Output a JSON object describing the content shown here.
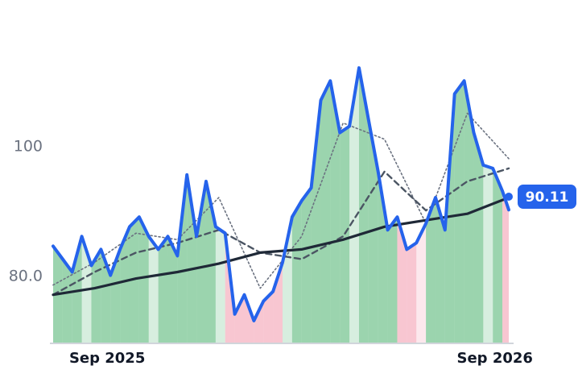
{
  "chart_data": {
    "type": "line",
    "x_start": "2025-08-19",
    "x_end": "2026-10-22",
    "xticks": [
      {
        "date": "2025-09-01",
        "label": "Sep 2025"
      },
      {
        "date": "2026-09-01",
        "label": "Sep 2026"
      }
    ],
    "yticks": [
      {
        "value": 80,
        "label": "80.0"
      },
      {
        "value": 100,
        "label": "100"
      }
    ],
    "ylim": [
      69.5,
      117.5
    ],
    "grid": false,
    "last_value_label": "90.11",
    "colors": {
      "price": "#2563eb",
      "ma_long": "#1f2937",
      "ma_mid": "#4b5563",
      "ma_short": "#6b7280",
      "up_fill": "#22a04b",
      "down_fill": "#f08099",
      "badge": "#2563eb",
      "axis": "#d1d5db"
    },
    "series": [
      {
        "key": "price",
        "x": [
          "2025-08-19",
          "2025-08-28",
          "2025-09-06",
          "2025-09-15",
          "2025-09-24",
          "2025-10-03",
          "2025-10-12",
          "2025-10-21",
          "2025-10-30",
          "2025-11-08",
          "2025-11-17",
          "2025-11-26",
          "2025-12-05",
          "2025-12-14",
          "2025-12-23",
          "2026-01-01",
          "2026-01-10",
          "2026-01-19",
          "2026-01-28",
          "2026-02-06",
          "2026-02-15",
          "2026-02-24",
          "2026-03-05",
          "2026-03-14",
          "2026-03-23",
          "2026-04-01",
          "2026-04-10",
          "2026-04-19",
          "2026-04-28",
          "2026-05-07",
          "2026-05-16",
          "2026-05-25",
          "2026-06-03",
          "2026-06-12",
          "2026-06-21",
          "2026-06-30",
          "2026-07-09",
          "2026-07-18",
          "2026-07-27",
          "2026-08-05",
          "2026-08-14",
          "2026-08-23",
          "2026-09-01",
          "2026-09-10",
          "2026-09-19",
          "2026-09-28",
          "2026-10-07",
          "2026-10-16",
          "2026-10-22"
        ],
        "y": [
          84.5,
          82.5,
          80.5,
          86.0,
          81.5,
          84.0,
          80.0,
          84.0,
          87.5,
          89.0,
          86.0,
          84.0,
          86.0,
          83.0,
          95.5,
          86.0,
          94.5,
          87.5,
          86.5,
          74.0,
          77.0,
          73.0,
          76.0,
          77.5,
          82.0,
          89.0,
          91.5,
          93.5,
          107.0,
          110.0,
          102.0,
          103.0,
          112.0,
          104.0,
          96.0,
          87.0,
          89.0,
          84.0,
          85.0,
          88.0,
          92.0,
          87.0,
          108.0,
          110.0,
          102.0,
          97.0,
          96.5,
          93.0,
          90.11
        ]
      },
      {
        "key": "ma_long",
        "x": [
          "2025-08-19",
          "2025-09-27",
          "2025-11-05",
          "2025-12-14",
          "2026-01-22",
          "2026-03-02",
          "2026-04-10",
          "2026-05-19",
          "2026-06-27",
          "2026-08-05",
          "2026-09-13",
          "2026-10-22"
        ],
        "y": [
          77.0,
          78.0,
          79.5,
          80.5,
          81.8,
          83.5,
          84.0,
          85.5,
          87.5,
          88.5,
          89.5,
          92.0
        ]
      },
      {
        "key": "ma_mid",
        "x": [
          "2025-08-19",
          "2025-09-27",
          "2025-11-05",
          "2025-12-14",
          "2026-01-22",
          "2026-03-02",
          "2026-04-10",
          "2026-05-19",
          "2026-06-27",
          "2026-08-05",
          "2026-09-13",
          "2026-10-22"
        ],
        "y": [
          77.0,
          80.5,
          83.5,
          85.0,
          87.0,
          83.5,
          82.5,
          86.0,
          96.0,
          90.0,
          94.5,
          96.5
        ]
      },
      {
        "key": "ma_short",
        "x": [
          "2025-08-19",
          "2025-09-27",
          "2025-11-05",
          "2025-12-14",
          "2026-01-22",
          "2026-03-02",
          "2026-04-10",
          "2026-05-19",
          "2026-06-27",
          "2026-08-05",
          "2026-09-13",
          "2026-10-22"
        ],
        "y": [
          78.5,
          82.0,
          86.5,
          85.5,
          92.0,
          78.0,
          86.0,
          103.5,
          101.0,
          88.0,
          105.0,
          98.0
        ]
      }
    ]
  }
}
